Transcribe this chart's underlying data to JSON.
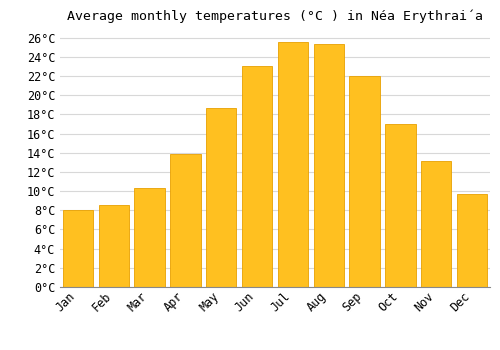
{
  "title": "Average monthly temperatures (°C ) in Néa Erythraía",
  "months": [
    "Jan",
    "Feb",
    "Mar",
    "Apr",
    "May",
    "Jun",
    "Jul",
    "Aug",
    "Sep",
    "Oct",
    "Nov",
    "Dec"
  ],
  "values": [
    8.0,
    8.5,
    10.3,
    13.9,
    18.7,
    23.0,
    25.5,
    25.3,
    22.0,
    17.0,
    13.1,
    9.7
  ],
  "bar_color": "#FFC020",
  "bar_edge_color": "#E8A000",
  "ylim": [
    0,
    27
  ],
  "yticks": [
    0,
    2,
    4,
    6,
    8,
    10,
    12,
    14,
    16,
    18,
    20,
    22,
    24,
    26
  ],
  "background_color": "#ffffff",
  "grid_color": "#d8d8d8",
  "title_fontsize": 9.5,
  "tick_fontsize": 8.5,
  "font_family": "monospace"
}
